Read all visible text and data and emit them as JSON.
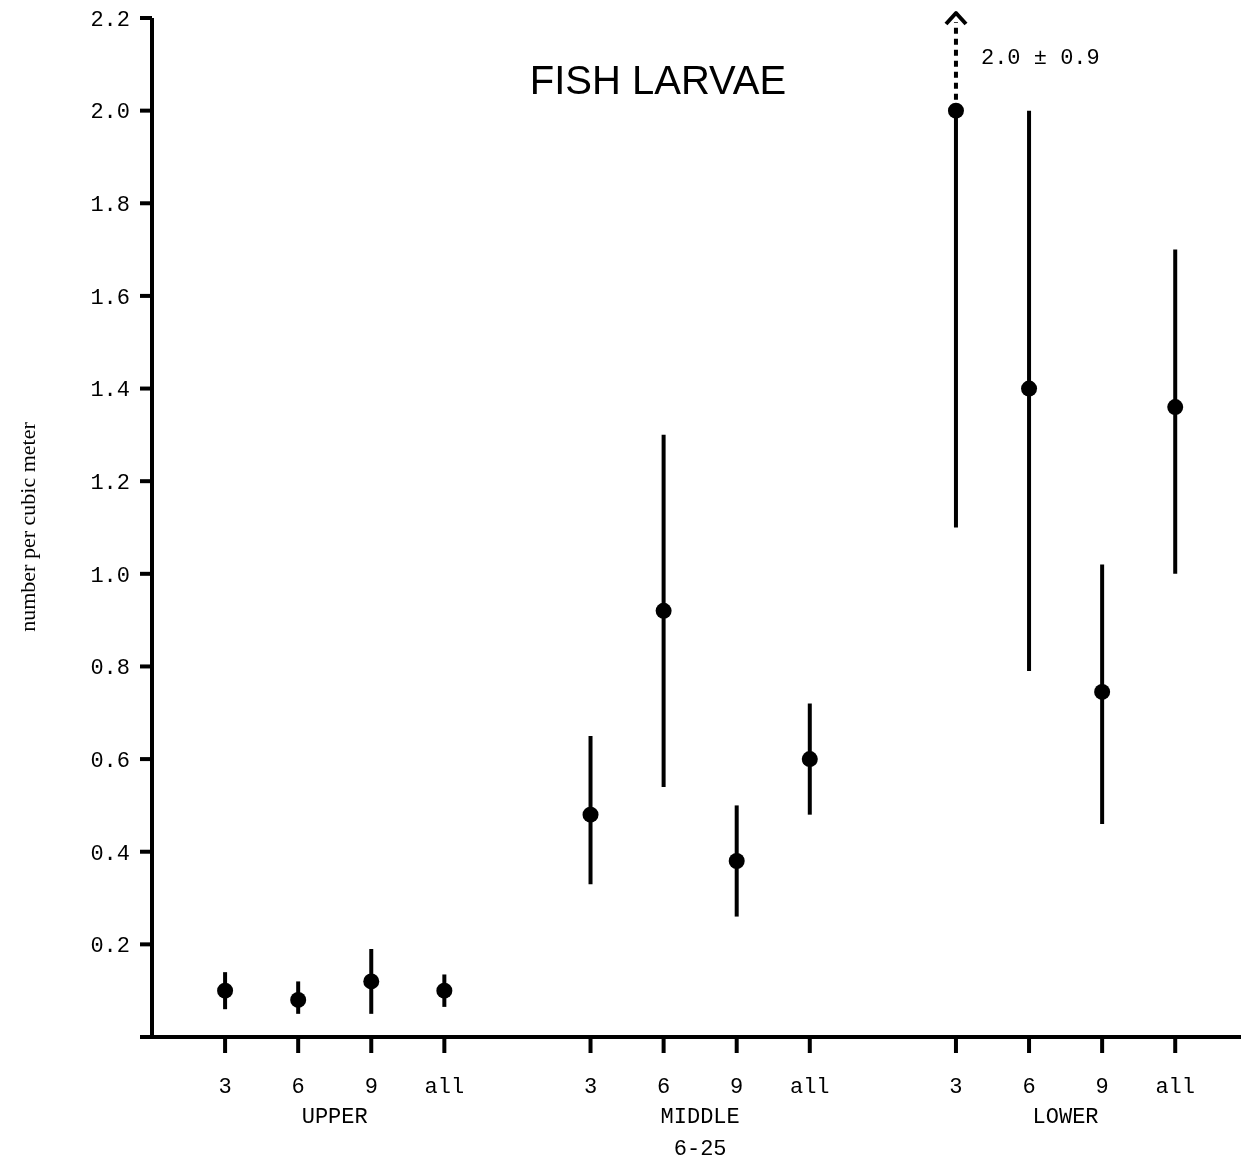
{
  "chart_data": {
    "type": "scatter",
    "title": "FISH LARVAE",
    "ylabel": "number per cubic meter",
    "categories": [
      "3",
      "6",
      "9",
      "all",
      null,
      "3",
      "6",
      "9",
      "all",
      null,
      "3",
      "6",
      "9",
      "all"
    ],
    "values": [
      0.1,
      0.08,
      0.12,
      0.1,
      null,
      0.48,
      0.92,
      0.38,
      0.6,
      null,
      2.0,
      1.4,
      0.745,
      1.36
    ],
    "errors": [
      [
        0.06,
        0.14
      ],
      [
        0.05,
        0.12
      ],
      [
        0.05,
        0.19
      ],
      [
        0.065,
        0.135
      ],
      null,
      [
        0.33,
        0.65
      ],
      [
        0.54,
        1.3
      ],
      [
        0.26,
        0.5
      ],
      [
        0.48,
        0.72
      ],
      null,
      [
        1.1,
        2.2
      ],
      [
        0.79,
        2.0
      ],
      [
        0.46,
        1.02
      ],
      [
        1.0,
        1.7
      ]
    ],
    "color": "#000000",
    "marker": "circle",
    "ylim": [
      0,
      2.2
    ],
    "yticks": [
      {
        "value": 0,
        "label": null
      },
      0.2,
      0.4,
      0.6,
      0.8,
      {
        "value": 1.0,
        "label": "1.0"
      },
      1.2,
      1.4,
      1.6,
      1.8,
      {
        "value": 2.0,
        "label": "2.0"
      },
      2.2
    ],
    "annotations": [
      "UPPER",
      "MIDDLE",
      "LOWER",
      "6-25",
      "2.0 ± 0.9"
    ],
    "grid": false
  }
}
